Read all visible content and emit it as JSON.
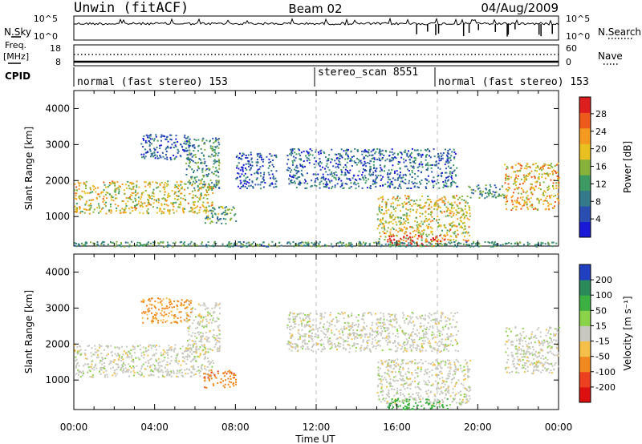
{
  "header": {
    "station": "Unwin (fitACF)",
    "beam": "Beam 02",
    "date": "04/Aug/2009"
  },
  "strip": {
    "nsky_label": "N.Sky",
    "nsearch_label": "N.Search",
    "freq_label_1": "Freq.",
    "freq_label_2": "[MHz]",
    "nave_label": "Nave",
    "cpid_label": "CPID",
    "nsky_ticks": [
      "10^5",
      "10^0"
    ],
    "nsearch_ticks": [
      "10^5",
      "10^0"
    ],
    "freq_ticks": [
      "18",
      "8"
    ],
    "nave_ticks": [
      "60",
      "0"
    ]
  },
  "cpid_segments": [
    {
      "label": "normal (fast stereo) 153",
      "start_h": 0,
      "end_h": 12
    },
    {
      "label": "stereo_scan 8551",
      "start_h": 12,
      "end_h": 18
    },
    {
      "label": "normal (fast stereo) 153",
      "start_h": 18,
      "end_h": 24
    }
  ],
  "chart_data": [
    {
      "type": "heatmap",
      "xlabel": "Time UT",
      "ylabel": "Slant Range [km]",
      "x_ticks": [
        "00:00",
        "04:00",
        "08:00",
        "12:00",
        "16:00",
        "20:00",
        "00:00"
      ],
      "x_range_hours": [
        0,
        24
      ],
      "y_ticks": [
        1000,
        2000,
        3000,
        4000
      ],
      "ylim": [
        180,
        4500
      ],
      "colorbar": {
        "label": "Power [dB]",
        "ticks": [
          "4",
          "8",
          "12",
          "16",
          "20",
          "24",
          "28"
        ],
        "range": [
          0,
          30
        ],
        "colors": [
          "#1a1ad6",
          "#2a4fb0",
          "#347a8a",
          "#3c9a62",
          "#86b23c",
          "#e8c020",
          "#f49a20",
          "#ec5a1e",
          "#dc1e1e"
        ]
      },
      "regions": [
        {
          "name": "A",
          "start_h": 0.0,
          "end_h": 6.9,
          "range_km": [
            1100,
            2000
          ],
          "power_db": 18
        },
        {
          "name": "B",
          "start_h": 5.5,
          "end_h": 7.2,
          "range_km": [
            1800,
            3200
          ],
          "power_db": 10
        },
        {
          "name": "C",
          "start_h": 3.3,
          "end_h": 5.8,
          "range_km": [
            2600,
            3300
          ],
          "power_db": 6
        },
        {
          "name": "D",
          "start_h": 6.4,
          "end_h": 8.0,
          "range_km": [
            800,
            1300
          ],
          "power_db": 12
        },
        {
          "name": "E",
          "start_h": 8.0,
          "end_h": 10.0,
          "range_km": [
            1800,
            2800
          ],
          "power_db": 5
        },
        {
          "name": "F",
          "start_h": 10.5,
          "end_h": 19.0,
          "range_km": [
            1800,
            2900
          ],
          "power_db": 7
        },
        {
          "name": "G",
          "start_h": 15.0,
          "end_h": 19.6,
          "range_km": [
            300,
            1600
          ],
          "power_db": 18
        },
        {
          "name": "H",
          "start_h": 15.5,
          "end_h": 18.5,
          "range_km": [
            200,
            500
          ],
          "power_db": 28
        },
        {
          "name": "I",
          "start_h": 19.5,
          "end_h": 21.3,
          "range_km": [
            1500,
            1900
          ],
          "power_db": 10
        },
        {
          "name": "J",
          "start_h": 21.3,
          "end_h": 24.0,
          "range_km": [
            1200,
            2500
          ],
          "power_db": 20
        }
      ],
      "ground_scatter_strip_km": [
        180,
        320
      ]
    },
    {
      "type": "heatmap",
      "xlabel": "Time UT",
      "ylabel": "Slant Range [km]",
      "x_ticks": [
        "00:00",
        "04:00",
        "08:00",
        "12:00",
        "16:00",
        "20:00",
        "00:00"
      ],
      "x_range_hours": [
        0,
        24
      ],
      "y_ticks": [
        1000,
        2000,
        3000,
        4000
      ],
      "ylim": [
        180,
        4500
      ],
      "colorbar": {
        "label": "Velocity [m s⁻¹]",
        "ticks": [
          "200",
          "100",
          "50",
          "15",
          "-15",
          "-50",
          "-100",
          "-200"
        ],
        "colors": [
          "#2040c0",
          "#2a8a5a",
          "#3cb043",
          "#8ad24a",
          "#c8c8c0",
          "#f4c04a",
          "#f08a20",
          "#ec4020",
          "#dc1010"
        ]
      },
      "regions": [
        {
          "name": "A",
          "start_h": 0.0,
          "end_h": 6.9,
          "range_km": [
            1100,
            2000
          ],
          "velocity": 0
        },
        {
          "name": "B",
          "start_h": 5.5,
          "end_h": 7.2,
          "range_km": [
            1800,
            3200
          ],
          "velocity": 0
        },
        {
          "name": "C",
          "start_h": 3.3,
          "end_h": 5.8,
          "range_km": [
            2600,
            3300
          ],
          "velocity": -40
        },
        {
          "name": "D",
          "start_h": 6.4,
          "end_h": 8.0,
          "range_km": [
            800,
            1300
          ],
          "velocity": -60
        },
        {
          "name": "F",
          "start_h": 10.5,
          "end_h": 19.0,
          "range_km": [
            1800,
            2900
          ],
          "velocity": 0
        },
        {
          "name": "G",
          "start_h": 15.0,
          "end_h": 19.6,
          "range_km": [
            300,
            1600
          ],
          "velocity": 0
        },
        {
          "name": "H",
          "start_h": 15.5,
          "end_h": 18.5,
          "range_km": [
            200,
            500
          ],
          "velocity": 60
        },
        {
          "name": "J",
          "start_h": 21.3,
          "end_h": 24.0,
          "range_km": [
            1200,
            2500
          ],
          "velocity": 0
        }
      ]
    }
  ]
}
